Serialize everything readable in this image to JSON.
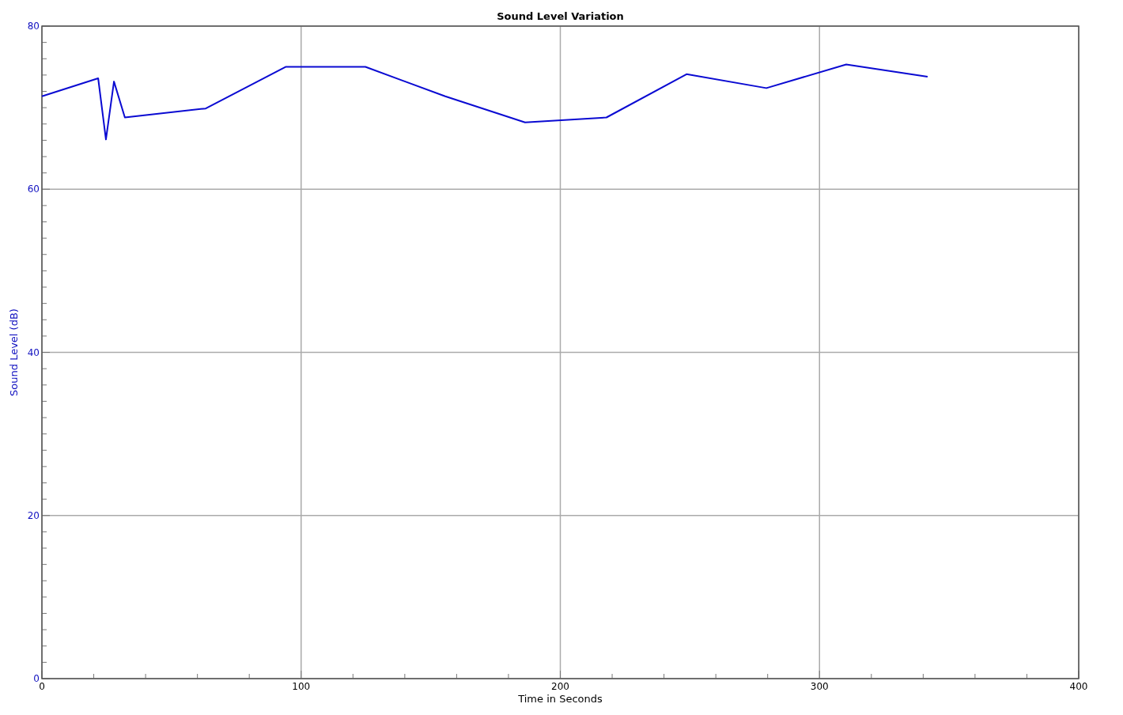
{
  "chart_data": {
    "type": "line",
    "title": "Sound Level Variation",
    "xlabel": "Time in Seconds",
    "ylabel": "Sound Level (dB)",
    "x": [
      0,
      21.7,
      24.7,
      27.8,
      32.0,
      63.2,
      94.0,
      124.8,
      155.6,
      186.4,
      217.8,
      248.7,
      279.5,
      310.3,
      341.7
    ],
    "series": [
      {
        "color": "#0a0ad2",
        "values": [
          71.4,
          73.6,
          66.1,
          73.2,
          68.8,
          69.9,
          75.0,
          75.0,
          71.4,
          68.2,
          68.8,
          74.1,
          72.4,
          75.3,
          73.8
        ]
      }
    ],
    "xlim": [
      0,
      400
    ],
    "ylim": [
      0,
      80
    ],
    "xticks": [
      0,
      {
        "value": 20,
        "label": null
      },
      {
        "value": 40,
        "label": null
      },
      {
        "value": 60,
        "label": null
      },
      {
        "value": 80,
        "label": null
      },
      100,
      {
        "value": 120,
        "label": null
      },
      {
        "value": 140,
        "label": null
      },
      {
        "value": 160,
        "label": null
      },
      {
        "value": 180,
        "label": null
      },
      200,
      {
        "value": 220,
        "label": null
      },
      {
        "value": 240,
        "label": null
      },
      {
        "value": 260,
        "label": null
      },
      {
        "value": 280,
        "label": null
      },
      300,
      {
        "value": 320,
        "label": null
      },
      {
        "value": 340,
        "label": null
      },
      {
        "value": 360,
        "label": null
      },
      {
        "value": 380,
        "label": null
      },
      400
    ],
    "yticks": [
      0,
      {
        "value": 2,
        "label": null
      },
      {
        "value": 4,
        "label": null
      },
      {
        "value": 6,
        "label": null
      },
      {
        "value": 8,
        "label": null
      },
      {
        "value": 10,
        "label": null
      },
      {
        "value": 12,
        "label": null
      },
      {
        "value": 14,
        "label": null
      },
      {
        "value": 16,
        "label": null
      },
      {
        "value": 18,
        "label": null
      },
      20,
      {
        "value": 22,
        "label": null
      },
      {
        "value": 24,
        "label": null
      },
      {
        "value": 26,
        "label": null
      },
      {
        "value": 28,
        "label": null
      },
      {
        "value": 30,
        "label": null
      },
      {
        "value": 32,
        "label": null
      },
      {
        "value": 34,
        "label": null
      },
      {
        "value": 36,
        "label": null
      },
      {
        "value": 38,
        "label": null
      },
      40,
      {
        "value": 42,
        "label": null
      },
      {
        "value": 44,
        "label": null
      },
      {
        "value": 46,
        "label": null
      },
      {
        "value": 48,
        "label": null
      },
      {
        "value": 50,
        "label": null
      },
      {
        "value": 52,
        "label": null
      },
      {
        "value": 54,
        "label": null
      },
      {
        "value": 56,
        "label": null
      },
      {
        "value": 58,
        "label": null
      },
      60,
      {
        "value": 62,
        "label": null
      },
      {
        "value": 64,
        "label": null
      },
      {
        "value": 66,
        "label": null
      },
      {
        "value": 68,
        "label": null
      },
      {
        "value": 70,
        "label": null
      },
      {
        "value": 72,
        "label": null
      },
      {
        "value": 74,
        "label": null
      },
      {
        "value": 76,
        "label": null
      },
      {
        "value": 78,
        "label": null
      },
      80
    ],
    "grid": true,
    "marker": "none",
    "line_style": "solid"
  }
}
